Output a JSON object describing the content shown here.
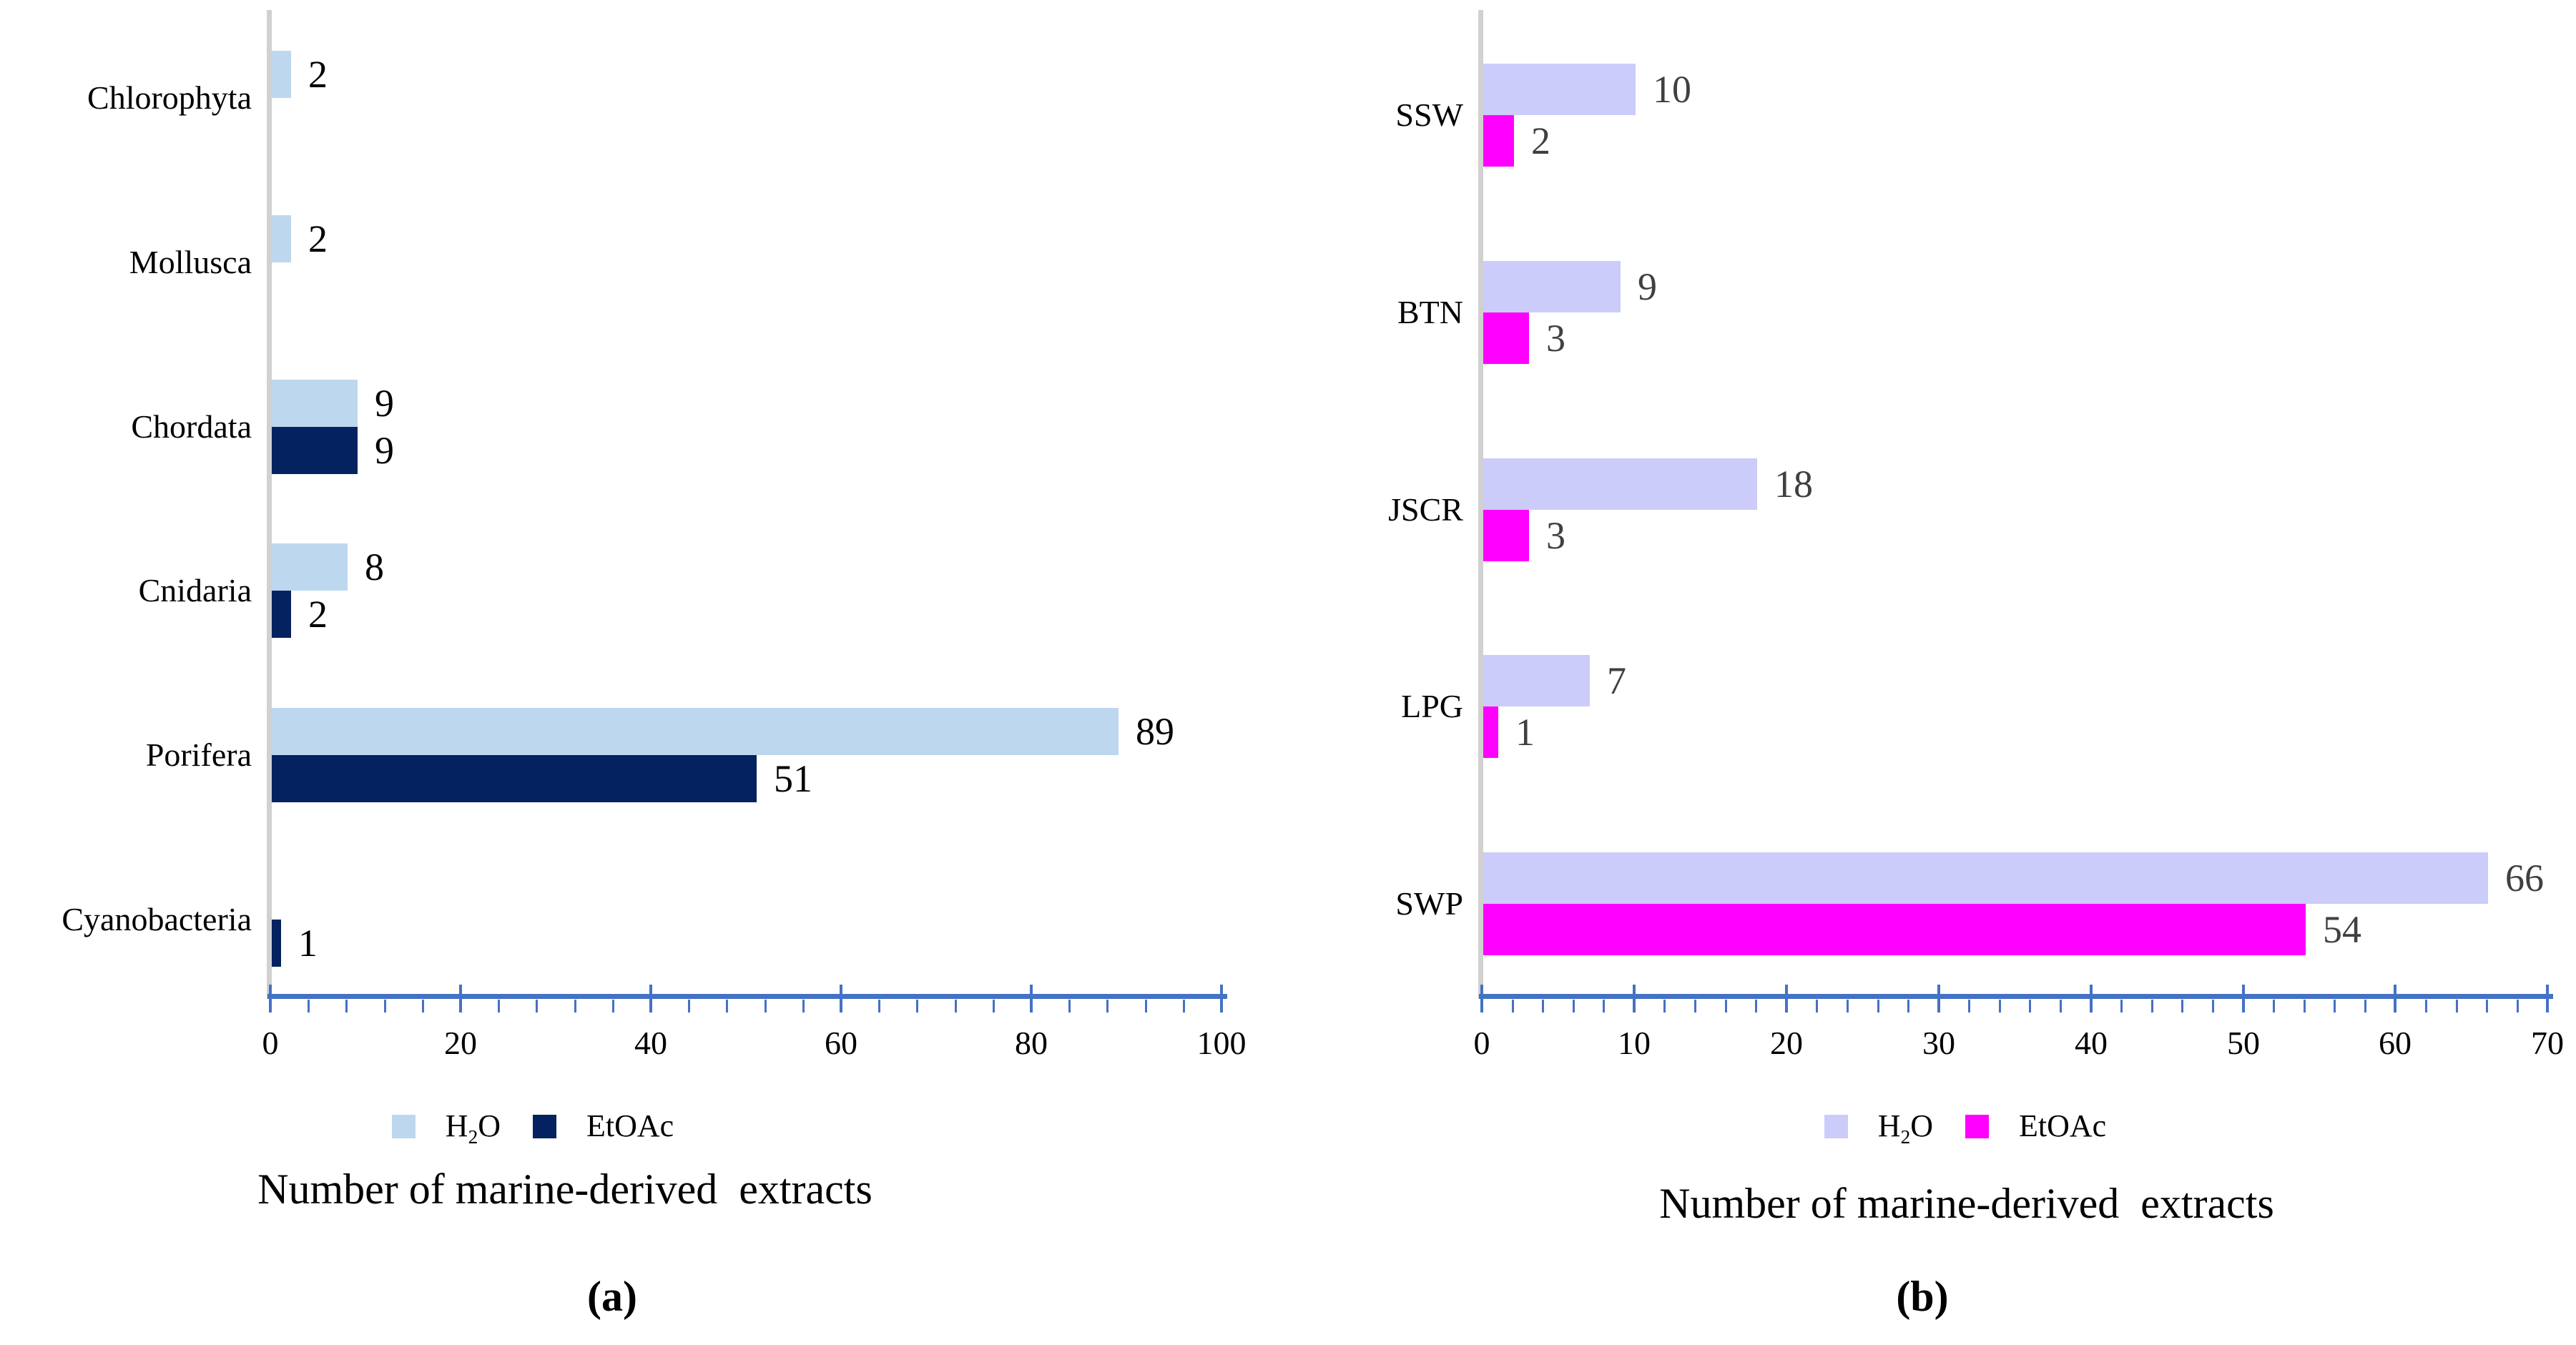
{
  "chart_data": [
    {
      "id": "a",
      "type": "bar",
      "orientation": "horizontal",
      "caption": "(a)",
      "xlabel": "Number of marine-derived  extracts",
      "categories": [
        "Chlorophyta",
        "Mollusca",
        "Chordata",
        "Cnidaria",
        "Porifera",
        "Cyanobacteria"
      ],
      "series": [
        {
          "key": "h2o",
          "name": "H2O",
          "legend": {
            "pre": "H",
            "sub": "2",
            "post": "O"
          },
          "color": "#BDD7EE",
          "values": [
            2,
            2,
            9,
            8,
            89,
            0
          ]
        },
        {
          "key": "etoac",
          "name": "EtOAc",
          "legend": {
            "pre": "EtOAc",
            "sub": "",
            "post": ""
          },
          "color": "#03225F",
          "values": [
            0,
            0,
            9,
            2,
            51,
            1
          ]
        }
      ],
      "xlim": [
        0,
        100
      ],
      "xticks": [
        0,
        20,
        40,
        60,
        80,
        100
      ],
      "minor_tick_step": 4,
      "grid": false,
      "legend_position": "bottom",
      "axis_color": "#4472C4",
      "y_axis_color": "#D2D0D0",
      "value_label_color": "#000000"
    },
    {
      "id": "b",
      "type": "bar",
      "orientation": "horizontal",
      "caption": "(b)",
      "xlabel": "Number of marine-derived  extracts",
      "categories": [
        "SSW",
        "BTN",
        "JSCR",
        "LPG",
        "SWP"
      ],
      "series": [
        {
          "key": "h2o",
          "name": "H2O",
          "legend": {
            "pre": "H",
            "sub": "2",
            "post": "O"
          },
          "color": "#CCCCFA",
          "values": [
            10,
            9,
            18,
            7,
            66
          ]
        },
        {
          "key": "etoac",
          "name": "EtOAc",
          "legend": {
            "pre": "EtOAc",
            "sub": "",
            "post": ""
          },
          "color": "#FF00FF",
          "values": [
            2,
            3,
            3,
            1,
            54
          ]
        }
      ],
      "xlim": [
        0,
        70
      ],
      "xticks": [
        0,
        10,
        20,
        30,
        40,
        50,
        60,
        70
      ],
      "minor_tick_step": 2,
      "grid": false,
      "legend_position": "bottom",
      "axis_color": "#4472C4",
      "y_axis_color": "#D2D0D0",
      "value_label_color": "#404040"
    }
  ]
}
